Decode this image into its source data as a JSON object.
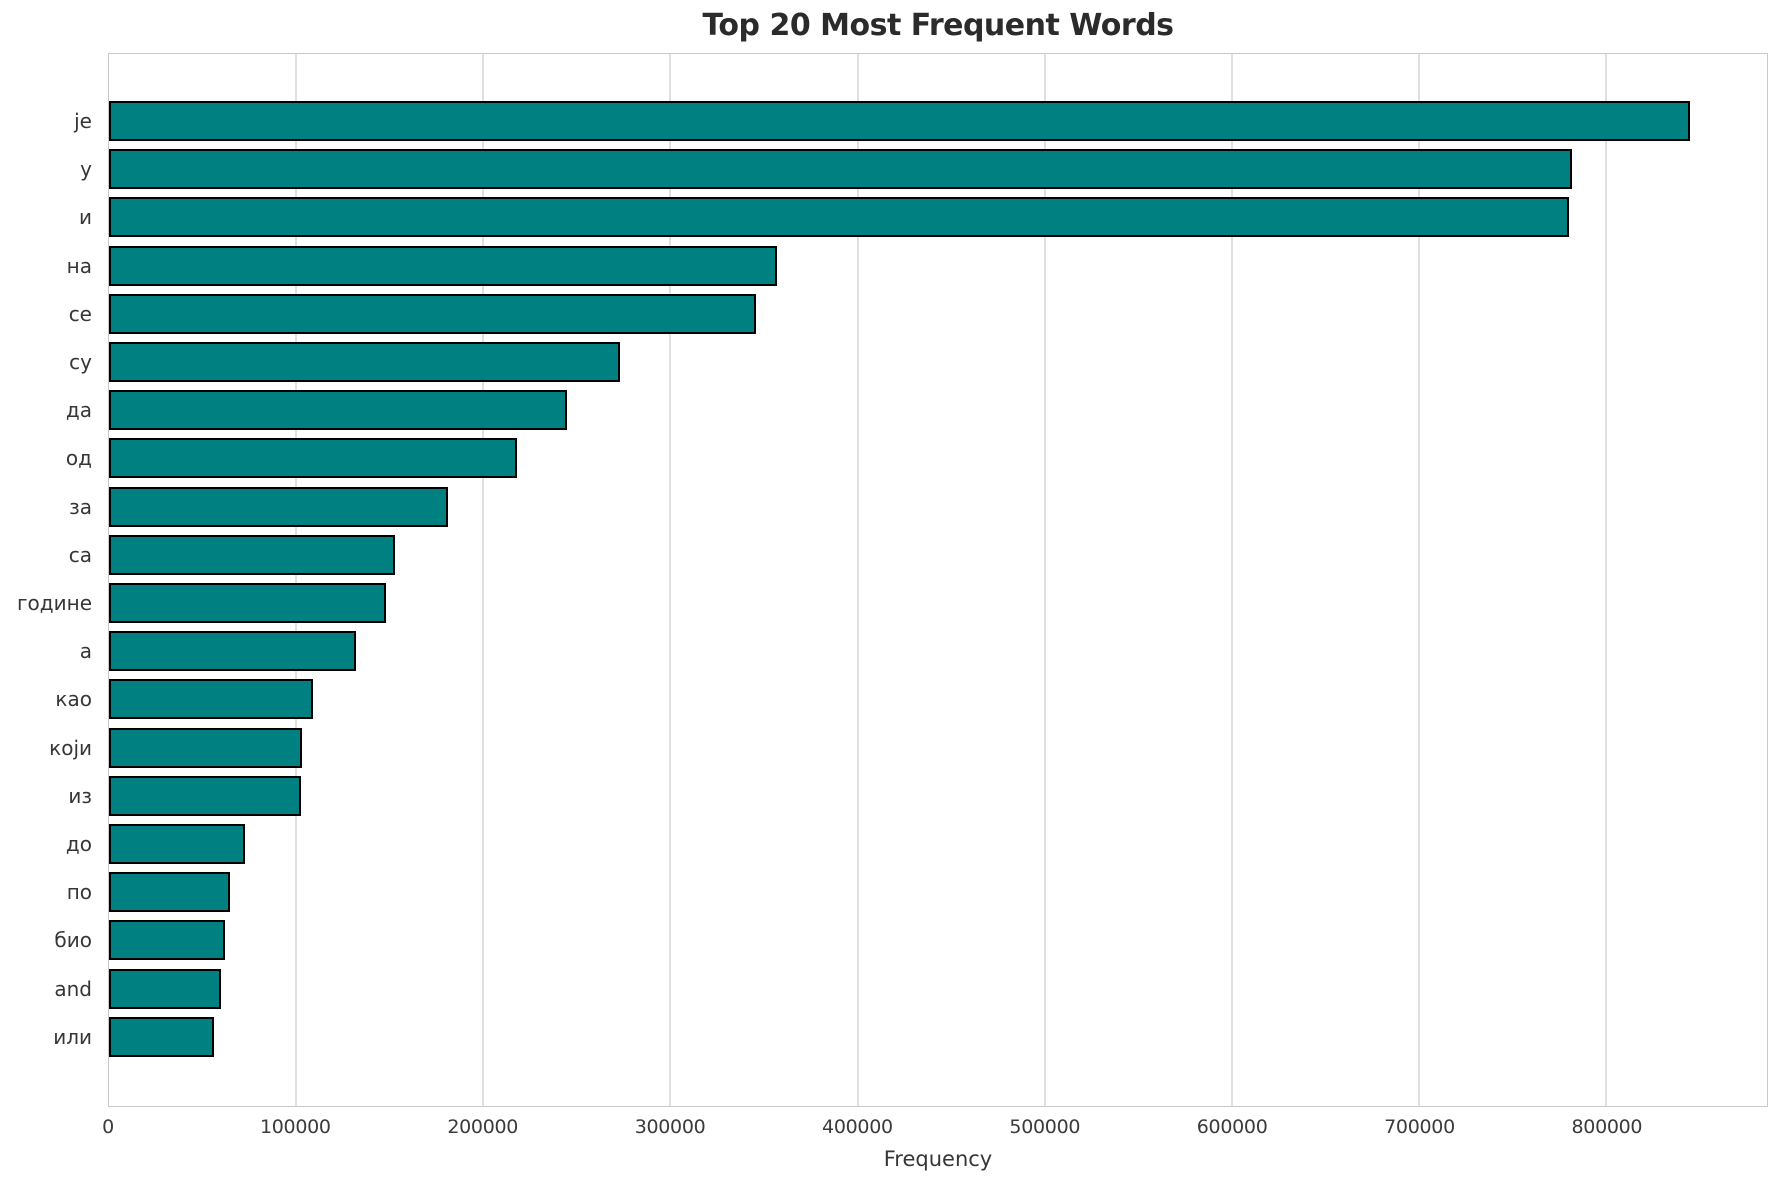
{
  "chart_data": {
    "type": "bar",
    "orientation": "horizontal",
    "title": "Top 20 Most Frequent Words",
    "xlabel": "Frequency",
    "ylabel": "",
    "categories": [
      "је",
      "у",
      "и",
      "на",
      "се",
      "су",
      "да",
      "од",
      "за",
      "са",
      "године",
      "а",
      "као",
      "који",
      "из",
      "до",
      "по",
      "био",
      "and",
      "или"
    ],
    "values": [
      845000,
      782000,
      780000,
      357000,
      346000,
      273000,
      245000,
      218000,
      181000,
      153000,
      148000,
      132000,
      109000,
      103000,
      102500,
      72500,
      64500,
      62000,
      60000,
      56000
    ],
    "xlim": [
      0,
      886000
    ],
    "xticks": [
      0,
      100000,
      200000,
      300000,
      400000,
      500000,
      600000,
      700000,
      800000
    ],
    "xtick_labels": [
      "0",
      "100000",
      "200000",
      "300000",
      "400000",
      "500000",
      "600000",
      "700000",
      "800000"
    ],
    "grid": true,
    "legend": "none",
    "colors": {
      "bar_fill": "#008080",
      "bar_edge": "#000000",
      "grid_line": "#e0e0e0",
      "plot_border": "#c9c9c9",
      "title_text": "#2b2b2b",
      "tick_text": "#3b3b3b",
      "background": "#ffffff"
    }
  }
}
